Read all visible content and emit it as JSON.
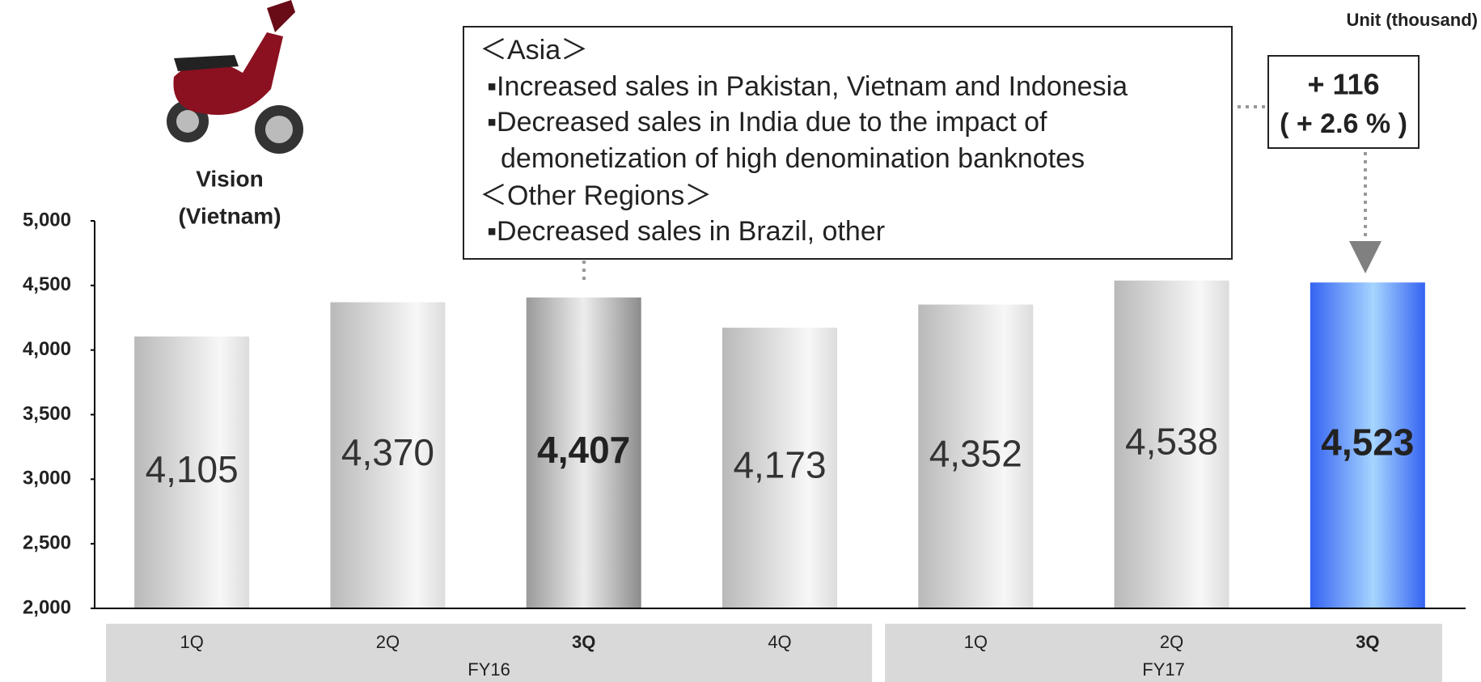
{
  "chart_data": {
    "type": "bar",
    "unit": "Unit (thousand)",
    "image_caption": [
      "Vision",
      "(Vietnam)"
    ],
    "groups": [
      {
        "name": "FY16",
        "categories": [
          "1Q",
          "2Q",
          "3Q",
          "4Q"
        ],
        "values": [
          4105,
          4370,
          4407,
          4173
        ],
        "value_labels": [
          "4,105",
          "4,370",
          "4,407",
          "4,173"
        ]
      },
      {
        "name": "FY17",
        "categories": [
          "1Q",
          "2Q",
          "3Q"
        ],
        "values": [
          4352,
          4538,
          4523
        ],
        "value_labels": [
          "4,352",
          "4,538",
          "4,523"
        ]
      }
    ],
    "ylim": [
      2000,
      5000
    ],
    "yticks": [
      {
        "value": 2000,
        "label": "2,000"
      },
      {
        "value": 2500,
        "label": "2,500"
      },
      {
        "value": 3000,
        "label": "3,000"
      },
      {
        "value": 3500,
        "label": "3,500"
      },
      {
        "value": 4000,
        "label": "4,000"
      },
      {
        "value": 4500,
        "label": "4,500"
      },
      {
        "value": 5000,
        "label": "5,000"
      }
    ],
    "annotation": [
      "＜Asia＞",
      "▪Increased sales in Pakistan, Vietnam and Indonesia",
      "▪Decreased sales in India due to the impact of",
      "demonetization of high denomination banknotes",
      "＜Other Regions＞",
      "▪Decreased sales in Brazil, other"
    ],
    "change": {
      "value": 116,
      "label": "+ 116",
      "percent": 2.6,
      "percent_label": "( + 2.6 % )"
    }
  }
}
